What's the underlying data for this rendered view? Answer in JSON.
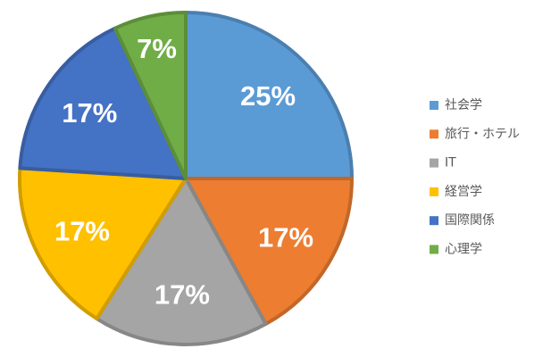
{
  "chart_data": {
    "type": "pie",
    "categories": [
      "社会学",
      "旅行・ホテル",
      "IT",
      "経営学",
      "国際関係",
      "心理学"
    ],
    "values": [
      25,
      17,
      17,
      17,
      17,
      7
    ],
    "value_labels": [
      "25%",
      "17%",
      "17%",
      "17%",
      "17%",
      "7%"
    ],
    "colors": [
      "#5b9bd5",
      "#ed7d31",
      "#a5a5a5",
      "#ffc000",
      "#4472c4",
      "#70ad47"
    ],
    "legend": "right"
  }
}
